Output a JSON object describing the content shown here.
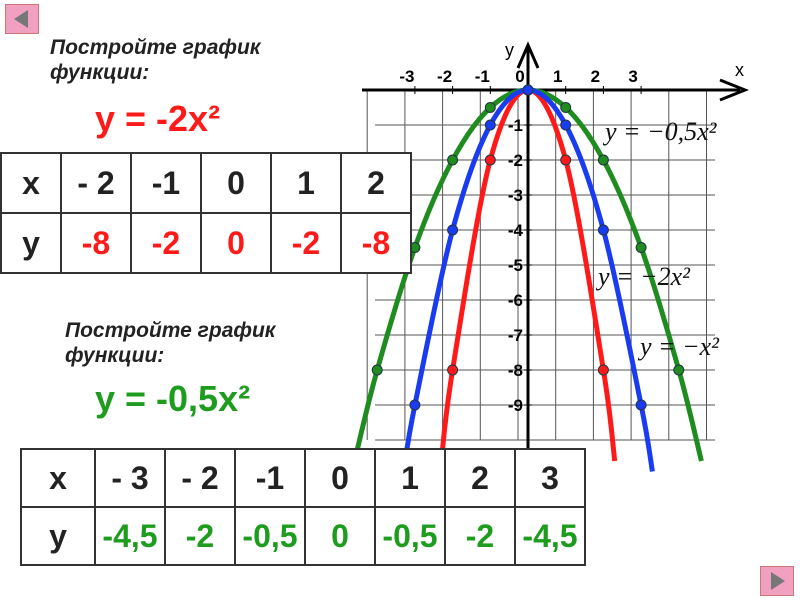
{
  "task1": {
    "prompt": [
      "Постройте график",
      "функции:"
    ],
    "formula": "y = -2x²"
  },
  "table1": {
    "rows": [
      [
        "x",
        "- 2",
        "-1",
        "0",
        "1",
        "2"
      ],
      [
        "y",
        "-8",
        "-2",
        "0",
        "-2",
        "-8"
      ]
    ]
  },
  "task2": {
    "prompt": [
      "Постройте график",
      "функции:"
    ],
    "formula": "y = -0,5x²"
  },
  "table2": {
    "rows": [
      [
        "x",
        "- 3",
        "- 2",
        "-1",
        "0",
        "1",
        "2",
        "3"
      ],
      [
        "y",
        "-4,5",
        "-2",
        "-0,5",
        "0",
        "-0,5",
        "-2",
        "-4,5"
      ]
    ]
  },
  "graph": {
    "x_label": "x",
    "y_label": "y",
    "xticks": [
      -3,
      -2,
      -1,
      0,
      1,
      2,
      3
    ],
    "yticks": [
      -1,
      -2,
      -3,
      -4,
      -5,
      -6,
      -7,
      -8,
      -9
    ],
    "curves": [
      {
        "label": "y = −0,5x²",
        "color": "#1e8c1e",
        "points": {
          "x": [
            -4.6,
            -4,
            -3,
            -2,
            -1,
            0,
            1,
            2,
            3,
            4,
            4.6
          ],
          "y": [
            -10.6,
            -8,
            -4.5,
            -2,
            -0.5,
            0,
            -0.5,
            -2,
            -4.5,
            -8,
            -10.6
          ]
        }
      },
      {
        "label": "y = −2x²",
        "color": "#ff1a1a",
        "points": {
          "x": [
            -2.3,
            -2,
            -1,
            0,
            1,
            2,
            2.3
          ],
          "y": [
            -10.6,
            -8,
            -2,
            0,
            -2,
            -8,
            -10.6
          ]
        }
      },
      {
        "label": "y = −x²",
        "color": "#1a3cf0",
        "points": {
          "x": [
            -3.3,
            -3,
            -2,
            -1,
            0,
            1,
            2,
            3,
            3.3
          ],
          "y": [
            -10.9,
            -9,
            -4,
            -1,
            0,
            -1,
            -4,
            -9,
            -10.9
          ]
        }
      }
    ]
  }
}
